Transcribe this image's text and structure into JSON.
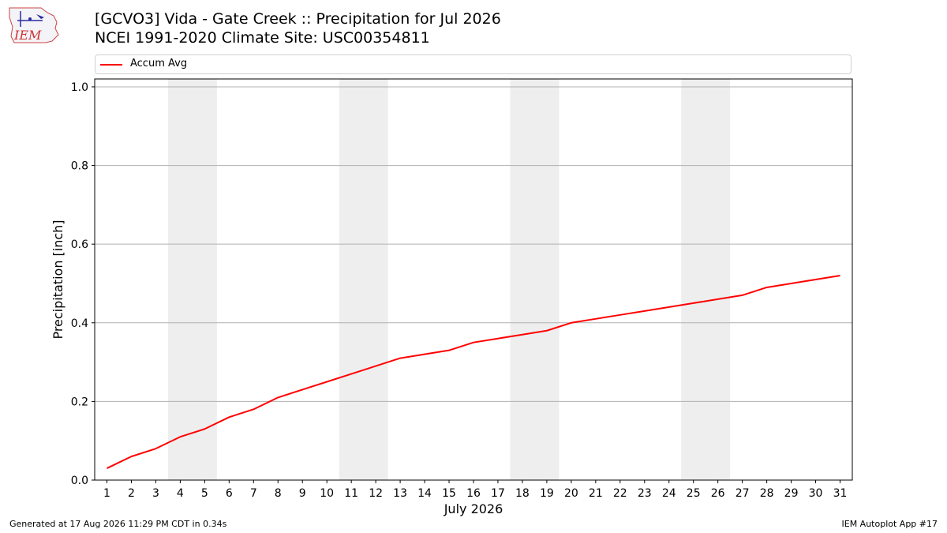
{
  "header": {
    "title_line1": "[GCVO3] Vida - Gate Creek :: Precipitation for Jul 2026",
    "title_line2": "NCEI 1991-2020 Climate Site: USC00354811",
    "logo_text": "IEM"
  },
  "legend": {
    "label": "Accum Avg",
    "color": "#ff0000"
  },
  "footer": {
    "generated": "Generated at 17 Aug 2026 11:29 PM CDT in 0.34s",
    "app": "IEM Autoplot App #17"
  },
  "chart_data": {
    "type": "line",
    "xlabel": "July 2026",
    "ylabel": "Precipitation [inch]",
    "x": [
      1,
      2,
      3,
      4,
      5,
      6,
      7,
      8,
      9,
      10,
      11,
      12,
      13,
      14,
      15,
      16,
      17,
      18,
      19,
      20,
      21,
      22,
      23,
      24,
      25,
      26,
      27,
      28,
      29,
      30,
      31
    ],
    "series": [
      {
        "name": "Accum Avg",
        "color": "#ff0000",
        "values": [
          0.03,
          0.06,
          0.08,
          0.11,
          0.13,
          0.16,
          0.18,
          0.21,
          0.23,
          0.25,
          0.27,
          0.29,
          0.31,
          0.32,
          0.33,
          0.35,
          0.36,
          0.37,
          0.38,
          0.4,
          0.41,
          0.42,
          0.43,
          0.44,
          0.45,
          0.46,
          0.47,
          0.49,
          0.5,
          0.51,
          0.52
        ]
      }
    ],
    "xlim": [
      0.5,
      31.5
    ],
    "ylim": [
      0.0,
      1.02
    ],
    "yticks": [
      "0.0",
      "0.2",
      "0.4",
      "0.6",
      "0.8",
      "1.0"
    ],
    "xticks": [
      "1",
      "2",
      "3",
      "4",
      "5",
      "6",
      "7",
      "8",
      "9",
      "10",
      "11",
      "12",
      "13",
      "14",
      "15",
      "16",
      "17",
      "18",
      "19",
      "20",
      "21",
      "22",
      "23",
      "24",
      "25",
      "26",
      "27",
      "28",
      "29",
      "30",
      "31"
    ],
    "weekend_bands": [
      [
        3.5,
        5.5
      ],
      [
        10.5,
        12.5
      ],
      [
        17.5,
        19.5
      ],
      [
        24.5,
        26.5
      ]
    ],
    "grid": "horizontal",
    "legend_position": "top"
  }
}
